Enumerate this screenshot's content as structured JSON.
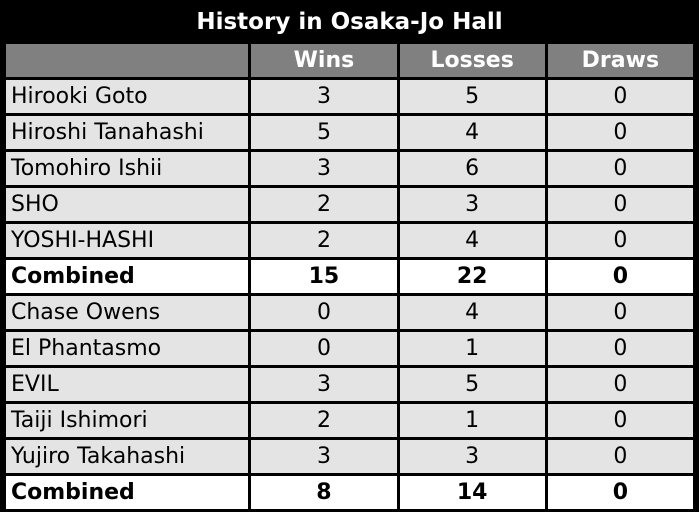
{
  "title": "History in Osaka-Jo Hall",
  "columns": [
    "",
    "Wins",
    "Losses",
    "Draws"
  ],
  "rows": [
    {
      "name": "Hirooki Goto",
      "wins": "3",
      "losses": "5",
      "draws": "0"
    },
    {
      "name": "Hiroshi Tanahashi",
      "wins": "5",
      "losses": "4",
      "draws": "0"
    },
    {
      "name": "Tomohiro Ishii",
      "wins": "3",
      "losses": "6",
      "draws": "0"
    },
    {
      "name": "SHO",
      "wins": "2",
      "losses": "3",
      "draws": "0"
    },
    {
      "name": "YOSHI-HASHI",
      "wins": "2",
      "losses": "4",
      "draws": "0"
    },
    {
      "name": "Combined",
      "wins": "15",
      "losses": "22",
      "draws": "0",
      "combined": true
    },
    {
      "name": "Chase Owens",
      "wins": "0",
      "losses": "4",
      "draws": "0"
    },
    {
      "name": "El Phantasmo",
      "wins": "0",
      "losses": "1",
      "draws": "0"
    },
    {
      "name": "EVIL",
      "wins": "3",
      "losses": "5",
      "draws": "0"
    },
    {
      "name": "Taiji Ishimori",
      "wins": "2",
      "losses": "1",
      "draws": "0"
    },
    {
      "name": "Yujiro Takahashi",
      "wins": "3",
      "losses": "3",
      "draws": "0"
    },
    {
      "name": "Combined",
      "wins": "8",
      "losses": "14",
      "draws": "0",
      "combined": true
    }
  ]
}
